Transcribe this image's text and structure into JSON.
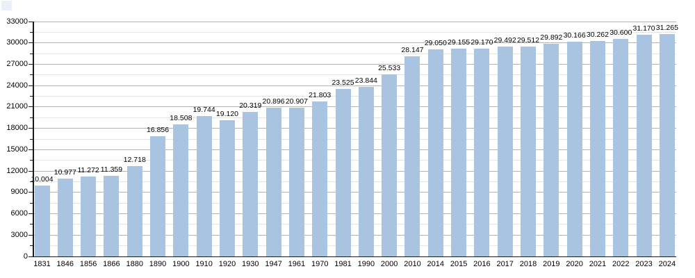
{
  "chart_data": {
    "type": "bar",
    "title": "",
    "xlabel": "",
    "ylabel": "",
    "categories": [
      "1831",
      "1846",
      "1856",
      "1866",
      "1880",
      "1890",
      "1900",
      "1910",
      "1920",
      "1930",
      "1947",
      "1961",
      "1970",
      "1981",
      "1990",
      "2000",
      "2010",
      "2014",
      "2015",
      "2016",
      "2017",
      "2018",
      "2019",
      "2020",
      "2021",
      "2022",
      "2023",
      "2024"
    ],
    "values": [
      10004,
      10977,
      11272,
      11359,
      12718,
      16856,
      18508,
      19744,
      19120,
      20319,
      20896,
      20907,
      21803,
      23525,
      23844,
      25533,
      28147,
      29050,
      29155,
      29170,
      29492,
      29512,
      29892,
      30166,
      30262,
      30600,
      31170,
      31265
    ],
    "value_labels": [
      "10.004",
      "10.977",
      "11.272",
      "11.359",
      "12.718",
      "16.856",
      "18.508",
      "19.744",
      "19.120",
      "20.319",
      "20.896",
      "20.907",
      "21.803",
      "23.525",
      "23.844",
      "25.533",
      "28.147",
      "29.050",
      "29.155",
      "29.170",
      "29.492",
      "29.512",
      "29.892",
      "30.166",
      "30.262",
      "30.600",
      "31.170",
      "31.265"
    ],
    "ylim": [
      0,
      33000
    ],
    "y_major_step": 3000,
    "y_minor_step": 1500,
    "y_tick_labels": [
      "0",
      "3000",
      "6000",
      "9000",
      "12000",
      "15000",
      "18000",
      "21000",
      "24000",
      "27000",
      "30000",
      "33000"
    ],
    "grid": true,
    "legend_position": "none",
    "colors": {
      "bar_fill": "#a9c4e1",
      "grid_major": "#b3b3b3",
      "grid_minor": "#e3e3e3",
      "axis": "#1a1a1a",
      "text": "#000000",
      "corner_swatch": "#e9f0f8",
      "background": "#ffffff"
    }
  }
}
